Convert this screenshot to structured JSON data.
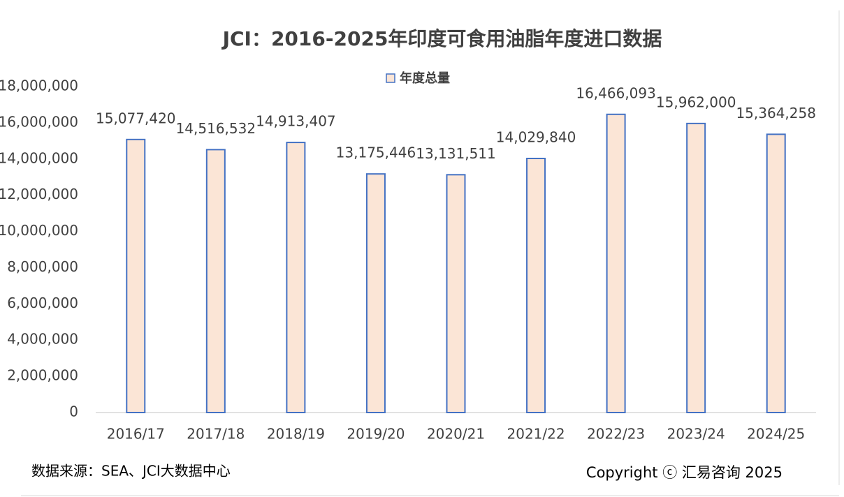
{
  "chart_data": {
    "type": "bar",
    "title": "JCI：2016-2025年印度可食用油脂年度进口数据",
    "categories": [
      "2016/17",
      "2017/18",
      "2018/19",
      "2019/20",
      "2020/21",
      "2021/22",
      "2022/23",
      "2023/24",
      "2024/25"
    ],
    "series": [
      {
        "name": "年度总量",
        "color": "#fbe5d6",
        "stroke": "#4472c4",
        "values": [
          15077420,
          14516532,
          14913407,
          13175446,
          13131511,
          14029840,
          16466093,
          15962000,
          15364258
        ],
        "value_labels": [
          "15,077,420",
          "14,516,532",
          "14,913,407",
          "13,175,446",
          "13,131,511",
          "14,029,840",
          "16,466,093",
          "15,962,000",
          "15,364,258"
        ]
      }
    ],
    "ylim": [
      0,
      18000000
    ],
    "yticks": [
      0,
      {
        "value": 2000000,
        "label": "2,000,000"
      },
      {
        "value": 4000000,
        "label": "4,000,000"
      },
      {
        "value": 6000000,
        "label": "6,000,000"
      },
      {
        "value": 8000000,
        "label": "8,000,000"
      },
      {
        "value": 10000000,
        "label": "10,000,000"
      },
      {
        "value": 12000000,
        "label": "12,000,000"
      },
      {
        "value": 14000000,
        "label": "14,000,000"
      },
      {
        "value": 16000000,
        "label": "16,000,000"
      },
      {
        "value": 18000000,
        "label": "18,000,000"
      }
    ],
    "grid": false,
    "legend": "top"
  },
  "source": "数据来源：SEA、JCI大数据中心",
  "copyright": "Copyright ⓒ 汇易咨询 2025"
}
